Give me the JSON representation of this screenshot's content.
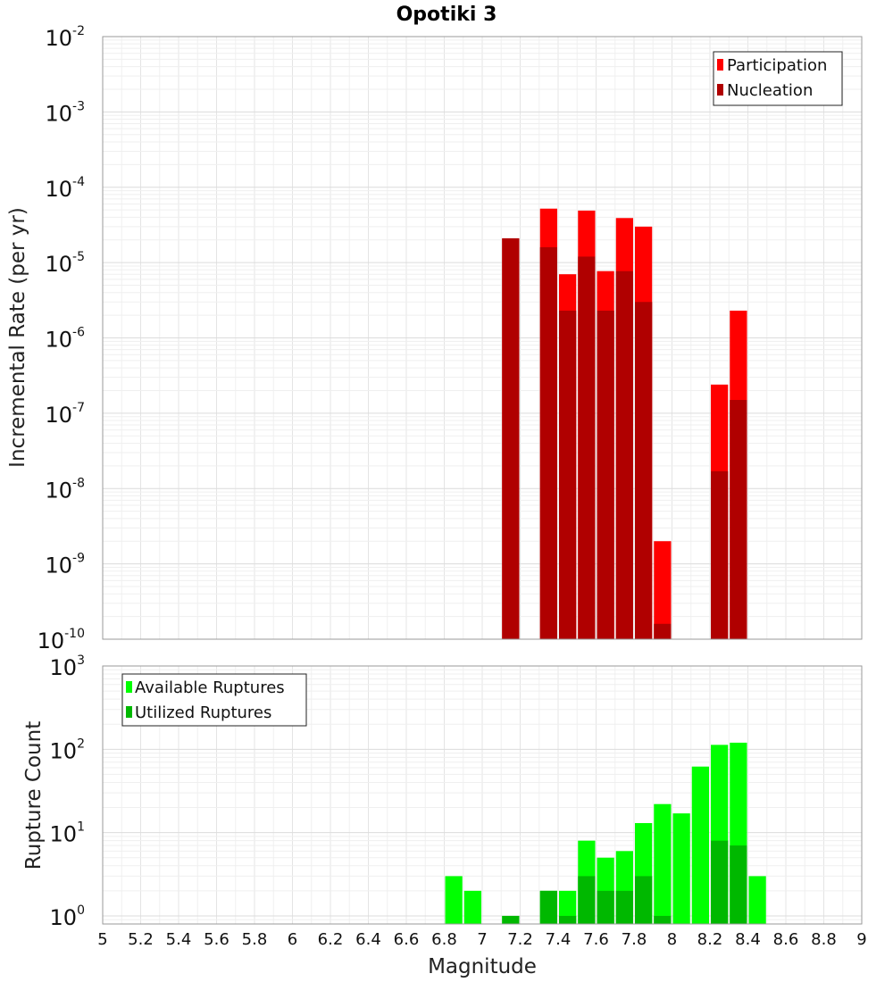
{
  "chart_data": [
    {
      "type": "bar",
      "title": "Opotiki 3",
      "xlabel": "Magnitude",
      "ylabel": "Incremental Rate (per yr)",
      "scale": "log",
      "xlim": [
        5,
        9
      ],
      "ylim": [
        1e-10,
        0.01
      ],
      "bar_width": 0.1,
      "grid": true,
      "legend_position": "top-right",
      "series": [
        {
          "name": "Participation",
          "color": "#ff0000",
          "x": [
            7.15,
            7.35,
            7.45,
            7.55,
            7.65,
            7.75,
            7.85,
            7.95,
            8.25,
            8.35
          ],
          "values": [
            2.1e-05,
            5.2e-05,
            7e-06,
            4.9e-05,
            7.7e-06,
            3.9e-05,
            3e-05,
            2e-09,
            2.4e-07,
            2.3e-06
          ]
        },
        {
          "name": "Nucleation",
          "color": "#b00000",
          "x": [
            7.15,
            7.35,
            7.45,
            7.55,
            7.65,
            7.75,
            7.85,
            7.95,
            8.25,
            8.35
          ],
          "values": [
            2.1e-05,
            1.6e-05,
            2.3e-06,
            1.2e-05,
            2.3e-06,
            7.7e-06,
            3e-06,
            1.6e-10,
            1.7e-08,
            1.5e-07
          ]
        }
      ]
    },
    {
      "type": "bar",
      "xlabel": "Magnitude",
      "ylabel": "Rupture Count",
      "scale": "log",
      "xlim": [
        5,
        9
      ],
      "ylim": [
        0.8,
        1000
      ],
      "bar_width": 0.1,
      "grid": true,
      "legend_position": "top-left",
      "xticks": [
        "5",
        "5.2",
        "5.4",
        "5.6",
        "5.8",
        "6",
        "6.2",
        "6.4",
        "6.6",
        "6.8",
        "7",
        "7.2",
        "7.4",
        "7.6",
        "7.8",
        "8",
        "8.2",
        "8.4",
        "8.6",
        "8.8",
        "9"
      ],
      "series": [
        {
          "name": "Available Ruptures",
          "color": "#00ff00",
          "x": [
            6.85,
            6.95,
            7.15,
            7.35,
            7.45,
            7.55,
            7.65,
            7.75,
            7.85,
            7.95,
            8.05,
            8.15,
            8.25,
            8.35,
            8.45
          ],
          "values": [
            3,
            2,
            1,
            2,
            2,
            8,
            5,
            6,
            13,
            22,
            17,
            62,
            113,
            120,
            3
          ]
        },
        {
          "name": "Utilized Ruptures",
          "color": "#00b800",
          "x": [
            6.85,
            6.95,
            7.15,
            7.35,
            7.45,
            7.55,
            7.65,
            7.75,
            7.85,
            7.95,
            8.05,
            8.15,
            8.25,
            8.35,
            8.45
          ],
          "values": [
            0,
            0,
            1,
            2,
            1,
            3,
            2,
            2,
            3,
            1,
            0,
            0,
            8,
            7,
            0
          ]
        }
      ]
    }
  ]
}
